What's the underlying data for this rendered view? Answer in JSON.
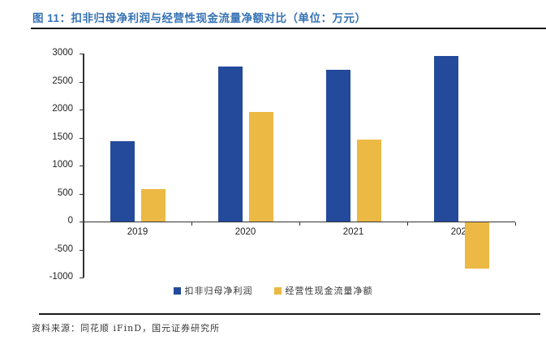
{
  "title": "图 11：扣非归母净利润与经营性现金流量净额对比（单位：万元）",
  "footer": {
    "source": "资料来源：同花顺 iFinD，国元证券研究所"
  },
  "colors": {
    "title_blue": "#3572B4",
    "bar_blue": "#234A9B",
    "bar_yellow": "#ECB944",
    "axis": "#333333",
    "rule": "#1A1A1A"
  },
  "chart_data": {
    "type": "bar",
    "title": "扣非归母净利润与经营性现金流量净额对比",
    "unit": "万元",
    "categories": [
      "2019",
      "2020",
      "2021",
      "2022"
    ],
    "series": [
      {
        "name": "扣非归母净利润",
        "color": "#234A9B",
        "values": [
          1440,
          2775,
          2710,
          2950
        ]
      },
      {
        "name": "经营性现金流量净额",
        "color": "#ECB944",
        "values": [
          575,
          1960,
          1465,
          -825
        ]
      }
    ],
    "ylim": [
      -1000,
      3000
    ],
    "ytick_step": 500,
    "yticks": [
      3000,
      2500,
      2000,
      1500,
      1000,
      500,
      0,
      -500,
      -1000
    ],
    "grid": false,
    "legend_position": "bottom"
  }
}
